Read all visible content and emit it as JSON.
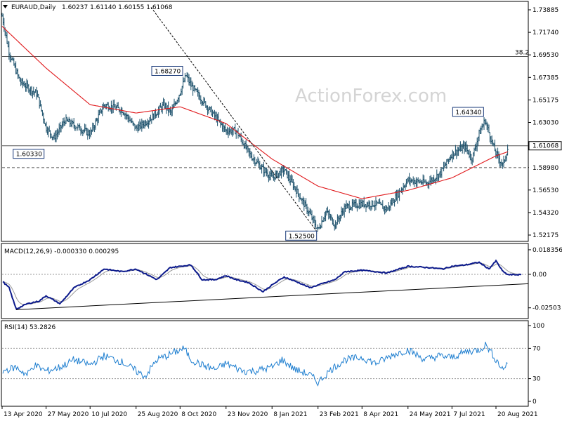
{
  "header": {
    "main_title": "EURAUD,Daily",
    "ohlc": "1.60237 1.61140 1.60155 1.61068",
    "macd_title": "MACD(12,26,9) -0.000330 0.000295",
    "rsi_title": "RSI(14) 53.2826",
    "watermark": "ActionForex.com"
  },
  "colors": {
    "price_bar": "#1a4f6a",
    "moving_average": "#e0191c",
    "macd_line": "#0c1a8c",
    "signal_line": "#9a9a9a",
    "rsi_line": "#1f7fd0",
    "trendline": "#000000"
  },
  "chart_data": [
    {
      "type": "line",
      "name": "price",
      "y_axis_ticks": [
        "1.73885",
        "1.71740",
        "1.69530",
        "1.67385",
        "1.65175",
        "1.63030",
        "1.60885",
        "1.58675",
        "1.56530",
        "1.54320",
        "1.52175"
      ],
      "ylim": [
        1.5205,
        1.7455
      ],
      "x_axis_labels": [
        "13 Apr 2020",
        "27 May 2020",
        "10 Jul 2020",
        "25 Aug 2020",
        "8 Oct 2020",
        "23 Nov 2020",
        "8 Jan 2021",
        "23 Feb 2021",
        "8 Apr 2021",
        "24 May 2021",
        "7 Jul 2021",
        "20 Aug 2021"
      ],
      "price_waypoints": [
        [
          "13 Apr 2020",
          1.735
        ],
        [
          "20 Apr 2020",
          1.7
        ],
        [
          "1 May 2020",
          1.672
        ],
        [
          "18 May 2020",
          1.66
        ],
        [
          "27 May 2020",
          1.628
        ],
        [
          "4 Jun 2020",
          1.618
        ],
        [
          "15 Jun 2020",
          1.635
        ],
        [
          "10 Jul 2020",
          1.622
        ],
        [
          "24 Jul 2020",
          1.65
        ],
        [
          "11 Aug 2020",
          1.645
        ],
        [
          "25 Aug 2020",
          1.627
        ],
        [
          "9 Sep 2020",
          1.637
        ],
        [
          "22 Sep 2020",
          1.65
        ],
        [
          "29 Sep 2020",
          1.642
        ],
        [
          "8 Oct 2020",
          1.662
        ],
        [
          "14 Oct 2020",
          1.678
        ],
        [
          "19 Oct 2020",
          1.668
        ],
        [
          "23 Nov 2020",
          1.625
        ],
        [
          "3 Dec 2020",
          1.625
        ],
        [
          "17 Dec 2020",
          1.602
        ],
        [
          "28 Dec 2020",
          1.59
        ],
        [
          "8 Jan 2021",
          1.58
        ],
        [
          "20 Jan 2021",
          1.588
        ],
        [
          "31 Jan 2021",
          1.57
        ],
        [
          "15 Feb 2021",
          1.545
        ],
        [
          "23 Feb 2021",
          1.53
        ],
        [
          "3 Mar 2021",
          1.548
        ],
        [
          "12 Mar 2021",
          1.535
        ],
        [
          "22 Mar 2021",
          1.552
        ],
        [
          "8 Apr 2021",
          1.555
        ],
        [
          "22 Apr 2021",
          1.555
        ],
        [
          "3 May 2021",
          1.55
        ],
        [
          "24 May 2021",
          1.578
        ],
        [
          "12 Jun 2021",
          1.575
        ],
        [
          "25 Jun 2021",
          1.584
        ],
        [
          "7 Jul 2021",
          1.603
        ],
        [
          "20 Jul 2021",
          1.61
        ],
        [
          "27 Jul 2021",
          1.598
        ],
        [
          "3 Aug 2021",
          1.622
        ],
        [
          "9 Aug 2021",
          1.635
        ],
        [
          "20 Aug 2021",
          1.603
        ],
        [
          "27 Aug 2021",
          1.592
        ],
        [
          "1 Sep 2021",
          1.609
        ]
      ],
      "ma_waypoints": [
        [
          "13 Apr 2020",
          1.725
        ],
        [
          "27 May 2020",
          1.685
        ],
        [
          "10 Jul 2020",
          1.65
        ],
        [
          "25 Aug 2020",
          1.642
        ],
        [
          "8 Oct 2020",
          1.648
        ],
        [
          "23 Nov 2020",
          1.632
        ],
        [
          "8 Jan 2021",
          1.598
        ],
        [
          "23 Feb 2021",
          1.572
        ],
        [
          "8 Apr 2021",
          1.56
        ],
        [
          "24 May 2021",
          1.568
        ],
        [
          "7 Jul 2021",
          1.58
        ],
        [
          "20 Aug 2021",
          1.601
        ],
        [
          "1 Sep 2021",
          1.605
        ]
      ],
      "horizontal_lines": [
        {
          "value": 1.6961,
          "label": "38.2",
          "style": "solid"
        },
        {
          "value": 1.61068,
          "style": "solid"
        },
        {
          "value": 1.5898,
          "style": "dashed"
        }
      ],
      "price_labels": [
        {
          "text": "1.68270",
          "date": "12 Oct 2020",
          "value": 1.6827
        },
        {
          "text": "1.60330",
          "date": "1 Jun 2020",
          "value": 1.6033
        },
        {
          "text": "1.52500",
          "date": "23 Feb 2021",
          "value": 1.525
        },
        {
          "text": "1.64340",
          "date": "9 Aug 2021",
          "value": 1.6434
        }
      ],
      "axis_tags": [
        {
          "text": "1.61068",
          "value": 1.61068,
          "style": "highlight"
        },
        {
          "text": "1.58980",
          "value": 1.5898,
          "style": "plain"
        }
      ],
      "trendline": [
        [
          "9 Sep 2020",
          1.7432
        ],
        [
          "23 Feb 2021",
          1.527
        ]
      ]
    },
    {
      "type": "line",
      "name": "MACD(12,26,9)",
      "y_axis_ticks": [
        "0.018356",
        "0.00",
        "-0.02503"
      ],
      "ylim": [
        -0.032,
        0.022
      ],
      "macd_waypoints": [
        [
          "13 Apr 2020",
          -0.005
        ],
        [
          "20 Apr 2020",
          -0.01
        ],
        [
          "27 Apr 2020",
          -0.026
        ],
        [
          "8 May 2020",
          -0.022
        ],
        [
          "20 May 2020",
          -0.02
        ],
        [
          "27 May 2020",
          -0.016
        ],
        [
          "10 Jun 2020",
          -0.022
        ],
        [
          "24 Jun 2020",
          -0.01
        ],
        [
          "10 Jul 2020",
          -0.004
        ],
        [
          "24 Jul 2020",
          0.004
        ],
        [
          "11 Aug 2020",
          0.002
        ],
        [
          "25 Aug 2020",
          0.004
        ],
        [
          "15 Sep 2020",
          -0.004
        ],
        [
          "28 Sep 2020",
          0.005
        ],
        [
          "8 Oct 2020",
          0.006
        ],
        [
          "19 Oct 2020",
          0.007
        ],
        [
          "30 Oct 2020",
          -0.004
        ],
        [
          "12 Nov 2020",
          -0.004
        ],
        [
          "23 Nov 2020",
          -0.001
        ],
        [
          "3 Dec 2020",
          -0.004
        ],
        [
          "15 Dec 2020",
          -0.006
        ],
        [
          "30 Dec 2020",
          -0.013
        ],
        [
          "8 Jan 2021",
          -0.008
        ],
        [
          "20 Jan 2021",
          -0.002
        ],
        [
          "3 Feb 2021",
          -0.006
        ],
        [
          "15 Feb 2021",
          -0.01
        ],
        [
          "23 Feb 2021",
          -0.008
        ],
        [
          "12 Mar 2021",
          -0.004
        ],
        [
          "22 Mar 2021",
          0.002
        ],
        [
          "8 Apr 2021",
          0.003
        ],
        [
          "22 Apr 2021",
          0.002
        ],
        [
          "3 May 2021",
          0.001
        ],
        [
          "24 May 2021",
          0.006
        ],
        [
          "14 Jun 2021",
          0.005
        ],
        [
          "28 Jun 2021",
          0.004
        ],
        [
          "7 Jul 2021",
          0.006
        ],
        [
          "20 Jul 2021",
          0.007
        ],
        [
          "3 Aug 2021",
          0.009
        ],
        [
          "13 Aug 2021",
          0.004
        ],
        [
          "20 Aug 2021",
          0.01
        ],
        [
          "27 Aug 2021",
          0.002
        ],
        [
          "1 Sep 2021",
          -0.0003
        ]
      ],
      "trendline": [
        [
          "27 Apr 2020",
          -0.0264
        ],
        [
          "1 Sep 2021",
          -0.007
        ]
      ]
    },
    {
      "type": "line",
      "name": "RSI(14)",
      "y_axis_ticks": [
        "100",
        "70",
        "30",
        "0"
      ],
      "ylim": [
        0,
        100
      ],
      "levels": [
        70,
        30
      ],
      "rsi_waypoints": [
        [
          "13 Apr 2020",
          40
        ],
        [
          "27 Apr 2020",
          45
        ],
        [
          "8 May 2020",
          35
        ],
        [
          "15 May 2020",
          48
        ],
        [
          "27 May 2020",
          40
        ],
        [
          "10 Jun 2020",
          45
        ],
        [
          "24 Jun 2020",
          55
        ],
        [
          "10 Jul 2020",
          48
        ],
        [
          "24 Jul 2020",
          60
        ],
        [
          "11 Aug 2020",
          52
        ],
        [
          "25 Aug 2020",
          40
        ],
        [
          "3 Sep 2020",
          33
        ],
        [
          "15 Sep 2020",
          55
        ],
        [
          "28 Sep 2020",
          62
        ],
        [
          "12 Oct 2020",
          70
        ],
        [
          "19 Oct 2020",
          55
        ],
        [
          "30 Oct 2020",
          48
        ],
        [
          "12 Nov 2020",
          42
        ],
        [
          "23 Nov 2020",
          50
        ],
        [
          "10 Dec 2020",
          40
        ],
        [
          "22 Dec 2020",
          40
        ],
        [
          "8 Jan 2021",
          45
        ],
        [
          "18 Jan 2021",
          55
        ],
        [
          "31 Jan 2021",
          42
        ],
        [
          "15 Feb 2021",
          35
        ],
        [
          "23 Feb 2021",
          25
        ],
        [
          "8 Mar 2021",
          42
        ],
        [
          "22 Mar 2021",
          55
        ],
        [
          "8 Apr 2021",
          58
        ],
        [
          "22 Apr 2021",
          50
        ],
        [
          "10 May 2021",
          62
        ],
        [
          "24 May 2021",
          68
        ],
        [
          "10 Jun 2021",
          55
        ],
        [
          "24 Jun 2021",
          60
        ],
        [
          "7 Jul 2021",
          58
        ],
        [
          "20 Jul 2021",
          65
        ],
        [
          "3 Aug 2021",
          68
        ],
        [
          "10 Aug 2021",
          75
        ],
        [
          "20 Aug 2021",
          55
        ],
        [
          "27 Aug 2021",
          42
        ],
        [
          "1 Sep 2021",
          53
        ]
      ]
    }
  ]
}
